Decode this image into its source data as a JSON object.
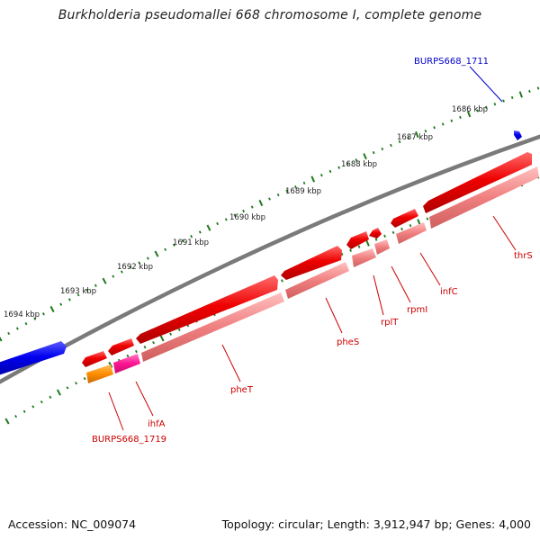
{
  "title": "Burkholderia pseudomallei 668 chromosome I, complete genome",
  "footer": {
    "accession": "Accession: NC_009074",
    "topology": "Topology: circular; Length: 3,912,947 bp; Genes: 4,000"
  },
  "colors": {
    "backbone": "#7a7a7a",
    "cds_forward": "#ee0000",
    "gene_forward": "#f08080",
    "cds_other": "#0000ee",
    "highlight_gene": "#ff1493",
    "orange_gene": "#ff8c00",
    "tick": "#1e7a1e",
    "label_red": "#cc0000",
    "label_blue": "#0000cc"
  },
  "ticks": {
    "labels": [
      "1686 kbp",
      "1687 kbp",
      "1688 kbp",
      "1689 kbp",
      "1690 kbp",
      "1691 kbp",
      "1692 kbp",
      "1693 kbp",
      "1694 kbp"
    ]
  },
  "genes": [
    {
      "name": "BURPS668_1711",
      "color": "label_blue"
    },
    {
      "name": "thrS",
      "color": "label_red"
    },
    {
      "name": "infC",
      "color": "label_red"
    },
    {
      "name": "rpmI",
      "color": "label_red"
    },
    {
      "name": "rplT",
      "color": "label_red"
    },
    {
      "name": "pheS",
      "color": "label_red"
    },
    {
      "name": "pheT",
      "color": "label_red"
    },
    {
      "name": "ihfA",
      "color": "label_red"
    },
    {
      "name": "BURPS668_1719",
      "color": "label_red"
    }
  ]
}
